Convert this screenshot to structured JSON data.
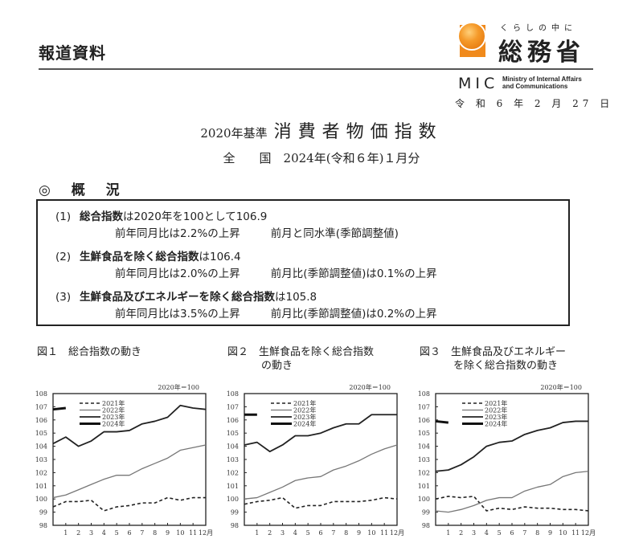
{
  "header": {
    "press_release": "報道資料",
    "logo": {
      "tagline": "くらしの中に",
      "name": "総務省",
      "abbr": "MIC",
      "en_line1": "Ministry of Internal Affairs",
      "en_line2": "and Communications",
      "color": "#f08a1c"
    },
    "date": "令 和 6 年 2 月 27 日"
  },
  "title": {
    "base": "2020年基準",
    "main": "消費者物価指数"
  },
  "subtitle": "全　　国　2024年(令和６年)１月分",
  "overview": {
    "heading": "◎ 概 況",
    "items": [
      {
        "num": "(1)",
        "bold": "総合指数",
        "rest": "は2020年を100として106.9",
        "line2a": "前年同月比は2.2%の上昇",
        "line2b": "前月と同水準(季節調整値)"
      },
      {
        "num": "(2)",
        "bold": "生鮮食品を除く総合指数",
        "rest": "は106.4",
        "line2a": "前年同月比は2.0%の上昇",
        "line2b": "前月比(季節調整値)は0.1%の上昇"
      },
      {
        "num": "(3)",
        "bold": "生鮮食品及びエネルギーを除く総合指数",
        "rest": "は105.8",
        "line2a": "前年同月比は3.5%の上昇",
        "line2b": "前月比(季節調整値)は0.2%の上昇"
      }
    ]
  },
  "figures": [
    {
      "label": "図１",
      "title_line1": "総合指数の動き",
      "title_line2": ""
    },
    {
      "label": "図２",
      "title_line1": "生鮮食品を除く総合指数",
      "title_line2": "の動き"
    },
    {
      "label": "図３",
      "title_line1": "生鮮食品及びエネルギー",
      "title_line2": "を除く総合指数の動き"
    }
  ],
  "chart_data": [
    {
      "type": "line",
      "title": "図１ 総合指数の動き",
      "unit": "2020年＝100",
      "x": [
        0,
        1,
        2,
        3,
        4,
        5,
        6,
        7,
        8,
        9,
        10,
        11,
        12
      ],
      "x_ticks": [
        "1",
        "2",
        "3",
        "4",
        "5",
        "6",
        "7",
        "8",
        "9",
        "10",
        "11",
        "12月"
      ],
      "ylim": [
        98,
        108
      ],
      "y_ticks": [
        98,
        99,
        100,
        101,
        102,
        103,
        104,
        105,
        106,
        107,
        108
      ],
      "legend": [
        "2021年",
        "2022年",
        "2023年",
        "2024年"
      ],
      "series": [
        {
          "name": "2021年",
          "style": "dashed",
          "values": [
            99.4,
            99.8,
            99.8,
            99.9,
            99.1,
            99.4,
            99.5,
            99.7,
            99.7,
            100.1,
            99.9,
            100.1,
            100.1
          ]
        },
        {
          "name": "2022年",
          "style": "thin-gray",
          "values": [
            100.1,
            100.3,
            100.7,
            101.1,
            101.5,
            101.8,
            101.8,
            102.3,
            102.7,
            103.1,
            103.7,
            103.9,
            104.1
          ]
        },
        {
          "name": "2023年",
          "style": "medium",
          "values": [
            104.2,
            104.7,
            104.0,
            104.4,
            105.1,
            105.1,
            105.2,
            105.7,
            105.9,
            106.2,
            107.1,
            106.9,
            106.8
          ]
        },
        {
          "name": "2024年",
          "style": "thick",
          "values": [
            106.8,
            106.9
          ]
        }
      ]
    },
    {
      "type": "line",
      "title": "図２ 生鮮食品を除く総合指数の動き",
      "unit": "2020年＝100",
      "x": [
        0,
        1,
        2,
        3,
        4,
        5,
        6,
        7,
        8,
        9,
        10,
        11,
        12
      ],
      "x_ticks": [
        "1",
        "2",
        "3",
        "4",
        "5",
        "6",
        "7",
        "8",
        "9",
        "10",
        "11",
        "12月"
      ],
      "ylim": [
        98,
        108
      ],
      "y_ticks": [
        98,
        99,
        100,
        101,
        102,
        103,
        104,
        105,
        106,
        107,
        108
      ],
      "legend": [
        "2021年",
        "2022年",
        "2023年",
        "2024年"
      ],
      "series": [
        {
          "name": "2021年",
          "style": "dashed",
          "values": [
            99.6,
            99.8,
            99.9,
            100.1,
            99.3,
            99.5,
            99.5,
            99.8,
            99.8,
            99.8,
            99.9,
            100.1,
            100.0
          ]
        },
        {
          "name": "2022年",
          "style": "thin-gray",
          "values": [
            100.0,
            100.1,
            100.5,
            100.9,
            101.4,
            101.6,
            101.7,
            102.2,
            102.5,
            102.9,
            103.4,
            103.8,
            104.1
          ]
        },
        {
          "name": "2023年",
          "style": "medium",
          "values": [
            104.1,
            104.3,
            103.6,
            104.1,
            104.8,
            104.8,
            105.0,
            105.4,
            105.7,
            105.7,
            106.4,
            106.4,
            106.4
          ]
        },
        {
          "name": "2024年",
          "style": "thick",
          "values": [
            106.4,
            106.4
          ]
        }
      ]
    },
    {
      "type": "line",
      "title": "図３ 生鮮食品及びエネルギーを除く総合指数の動き",
      "unit": "2020年＝100",
      "x": [
        0,
        1,
        2,
        3,
        4,
        5,
        6,
        7,
        8,
        9,
        10,
        11,
        12
      ],
      "x_ticks": [
        "1",
        "2",
        "3",
        "4",
        "5",
        "6",
        "7",
        "8",
        "9",
        "10",
        "11",
        "12月"
      ],
      "ylim": [
        98,
        108
      ],
      "y_ticks": [
        98,
        99,
        100,
        101,
        102,
        103,
        104,
        105,
        106,
        107,
        108
      ],
      "legend": [
        "2021年",
        "2022年",
        "2023年",
        "2024年"
      ],
      "series": [
        {
          "name": "2021年",
          "style": "dashed",
          "values": [
            100.0,
            100.2,
            100.1,
            100.2,
            99.1,
            99.3,
            99.2,
            99.4,
            99.3,
            99.3,
            99.2,
            99.2,
            99.1
          ]
        },
        {
          "name": "2022年",
          "style": "thin-gray",
          "values": [
            99.1,
            99.0,
            99.2,
            99.5,
            99.9,
            100.1,
            100.1,
            100.6,
            100.9,
            101.1,
            101.7,
            102.0,
            102.1
          ]
        },
        {
          "name": "2023年",
          "style": "medium",
          "values": [
            102.1,
            102.2,
            102.6,
            103.2,
            104.0,
            104.3,
            104.4,
            104.9,
            105.2,
            105.4,
            105.8,
            105.9,
            105.9
          ]
        },
        {
          "name": "2024年",
          "style": "thick",
          "values": [
            105.9,
            105.8
          ]
        }
      ]
    }
  ]
}
